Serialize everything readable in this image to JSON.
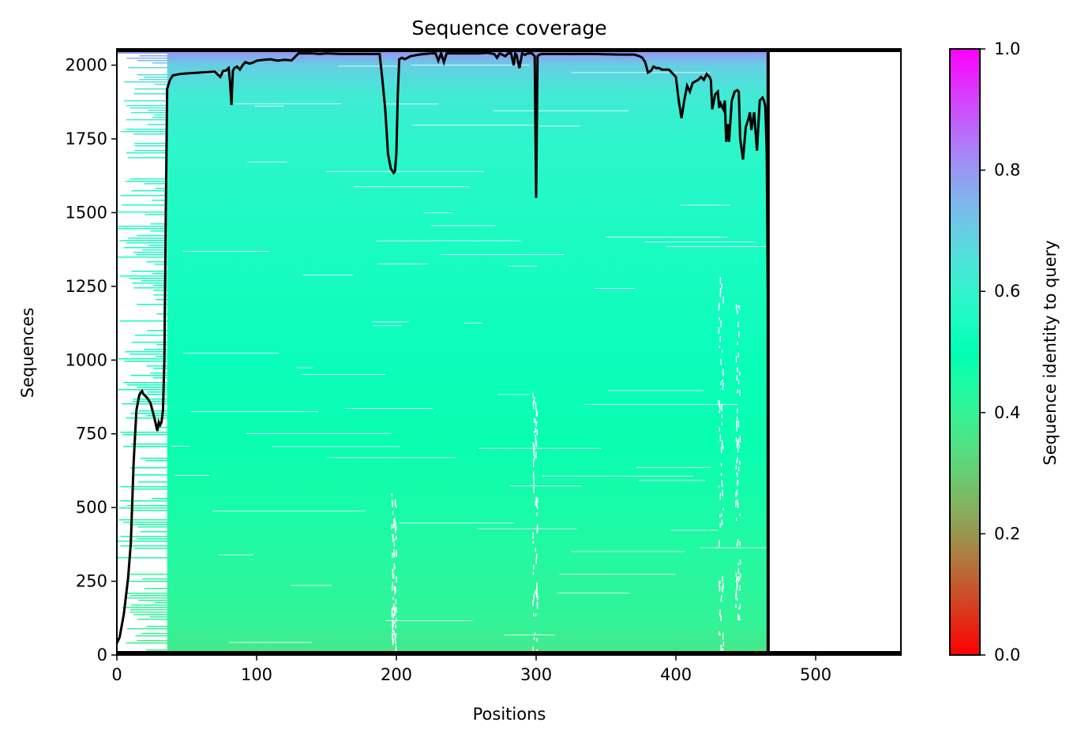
{
  "chart_data": {
    "type": "heatmap",
    "title": "Sequence coverage",
    "xlabel": "Positions",
    "ylabel": "Sequences",
    "xlim": [
      0,
      561
    ],
    "ylim": [
      0,
      2055
    ],
    "alignment_length": 466,
    "num_sequences": 2055,
    "x_ticks": [
      0,
      100,
      200,
      300,
      400,
      500
    ],
    "y_ticks": [
      0,
      250,
      500,
      750,
      1000,
      1250,
      1500,
      1750,
      2000
    ],
    "colorbar": {
      "label": "Sequence identity to query",
      "range": [
        0.0,
        1.0
      ],
      "ticks": [
        "0.0",
        "0.2",
        "0.4",
        "0.6",
        "0.8",
        "1.0"
      ],
      "colormap": "rainbow_r"
    },
    "identity_gradient": [
      {
        "sequence": 0,
        "identity": 0.36
      },
      {
        "sequence": 100,
        "identity": 0.4
      },
      {
        "sequence": 400,
        "identity": 0.44
      },
      {
        "sequence": 700,
        "identity": 0.48
      },
      {
        "sequence": 1000,
        "identity": 0.52
      },
      {
        "sequence": 1500,
        "identity": 0.56
      },
      {
        "sequence": 1750,
        "identity": 0.59
      },
      {
        "sequence": 1900,
        "identity": 0.63
      },
      {
        "sequence": 2000,
        "identity": 0.7
      },
      {
        "sequence": 2055,
        "identity": 0.82
      }
    ],
    "series": [
      {
        "type": "line",
        "color": "#000000",
        "x": [
          0,
          2,
          5,
          8,
          10,
          12,
          14,
          16,
          17,
          18,
          19,
          20,
          21,
          22,
          24,
          26,
          28,
          29,
          30,
          31,
          32,
          33,
          34,
          35,
          36,
          38,
          40,
          45,
          50,
          60,
          70,
          74,
          76,
          78,
          80,
          81,
          82,
          83,
          84,
          86,
          88,
          90,
          92,
          95,
          98,
          100,
          105,
          110,
          115,
          120,
          125,
          130,
          135,
          140,
          145,
          150,
          155,
          160,
          170,
          180,
          188,
          190,
          192,
          194,
          196,
          198,
          199,
          200,
          201,
          202,
          204,
          206,
          210,
          215,
          220,
          225,
          228,
          230,
          232,
          234,
          236,
          240,
          250,
          260,
          265,
          270,
          272,
          274,
          276,
          278,
          280,
          282,
          284,
          285,
          286,
          288,
          290,
          292,
          294,
          296,
          297,
          298,
          299,
          300,
          301,
          302,
          304,
          310,
          320,
          340,
          360,
          370,
          372,
          374,
          376,
          378,
          380,
          382,
          384,
          386,
          388,
          390,
          395,
          400,
          402,
          404,
          406,
          408,
          410,
          412,
          414,
          416,
          418,
          420,
          422,
          424,
          425,
          426,
          428,
          430,
          431,
          432,
          434,
          435,
          436,
          437,
          438,
          440,
          442,
          444,
          445,
          446,
          448,
          450,
          452,
          453,
          454,
          456,
          458,
          460,
          462,
          463,
          464,
          465,
          466
        ],
        "y": [
          40,
          60,
          140,
          260,
          380,
          650,
          830,
          880,
          890,
          895,
          885,
          880,
          875,
          870,
          855,
          820,
          780,
          760,
          790,
          780,
          790,
          830,
          1000,
          1500,
          1920,
          1950,
          1965,
          1970,
          1972,
          1975,
          1978,
          1960,
          1980,
          1982,
          1990,
          1940,
          1865,
          1980,
          1990,
          1995,
          1985,
          2000,
          2010,
          2005,
          2010,
          2015,
          2018,
          2020,
          2015,
          2018,
          2016,
          2040,
          2040,
          2040,
          2038,
          2040,
          2039,
          2038,
          2038,
          2038,
          2038,
          1950,
          1850,
          1700,
          1650,
          1635,
          1640,
          1700,
          1900,
          2020,
          2025,
          2020,
          2030,
          2035,
          2038,
          2040,
          2040,
          2015,
          2040,
          2010,
          2040,
          2040,
          2040,
          2040,
          2042,
          2038,
          2025,
          2040,
          2035,
          2030,
          2040,
          2040,
          2000,
          2040,
          2035,
          1990,
          2040,
          2035,
          2040,
          2040,
          2040,
          2035,
          2030,
          1550,
          2030,
          2035,
          2038,
          2038,
          2038,
          2038,
          2036,
          2036,
          2033,
          2030,
          2025,
          2010,
          1975,
          1980,
          1995,
          1990,
          1990,
          1985,
          1985,
          1960,
          1880,
          1820,
          1880,
          1930,
          1910,
          1940,
          1945,
          1950,
          1960,
          1950,
          1970,
          1960,
          1950,
          1850,
          1900,
          1910,
          1855,
          1870,
          1850,
          1880,
          1740,
          1800,
          1740,
          1880,
          1910,
          1915,
          1910,
          1750,
          1680,
          1790,
          1820,
          1840,
          1780,
          1840,
          1710,
          1880,
          1890,
          1880,
          1860,
          1700,
          1100
        ]
      }
    ]
  }
}
